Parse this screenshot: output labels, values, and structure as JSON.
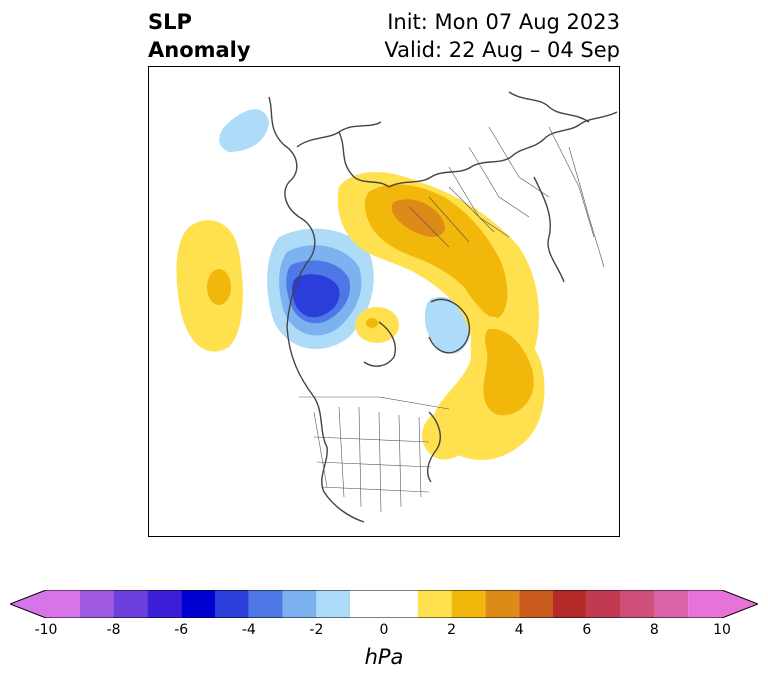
{
  "title": {
    "left_line1": "SLP",
    "left_line2": "Anomaly",
    "right_line1": "Init: Mon 07 Aug 2023",
    "right_line2": "Valid: 22 Aug – 04 Sep"
  },
  "map": {
    "projection": "north-polar-stereographic",
    "features": [
      "coastlines",
      "country-borders",
      "us-state-borders"
    ]
  },
  "colorbar": {
    "unit": "hPa",
    "min": -10,
    "max": 10,
    "extend": "both",
    "tick_labels": [
      "-10",
      "-8",
      "-6",
      "-4",
      "-2",
      "0",
      "2",
      "4",
      "6",
      "8",
      "10"
    ],
    "bins": [
      {
        "from": -10,
        "to": -9,
        "color": "#d774e8"
      },
      {
        "from": -9,
        "to": -8,
        "color": "#a05ae1"
      },
      {
        "from": -8,
        "to": -7,
        "color": "#6d3fdc"
      },
      {
        "from": -7,
        "to": -6,
        "color": "#3a1fd6"
      },
      {
        "from": -6,
        "to": -5,
        "color": "#0000d1"
      },
      {
        "from": -5,
        "to": -4,
        "color": "#2b3ed9"
      },
      {
        "from": -4,
        "to": -3,
        "color": "#4e78e6"
      },
      {
        "from": -3,
        "to": -2,
        "color": "#7db2f1"
      },
      {
        "from": -2,
        "to": -1,
        "color": "#aedcf8"
      },
      {
        "from": -1,
        "to": 1,
        "color": "#ffffff"
      },
      {
        "from": 1,
        "to": 2,
        "color": "#ffe04f"
      },
      {
        "from": 2,
        "to": 3,
        "color": "#f1b70b"
      },
      {
        "from": 3,
        "to": 4,
        "color": "#dc8a18"
      },
      {
        "from": 4,
        "to": 5,
        "color": "#c95c1d"
      },
      {
        "from": 5,
        "to": 6,
        "color": "#b42a29"
      },
      {
        "from": 6,
        "to": 7,
        "color": "#c23a52"
      },
      {
        "from": 7,
        "to": 8,
        "color": "#cf4f7b"
      },
      {
        "from": 8,
        "to": 9,
        "color": "#da62a6"
      },
      {
        "from": 9,
        "to": 10,
        "color": "#e674d8"
      }
    ],
    "low_extend_color": "#d774e8",
    "high_extend_color": "#e674d8"
  },
  "colors": {
    "coastline": "#444444",
    "border": "#555555"
  }
}
